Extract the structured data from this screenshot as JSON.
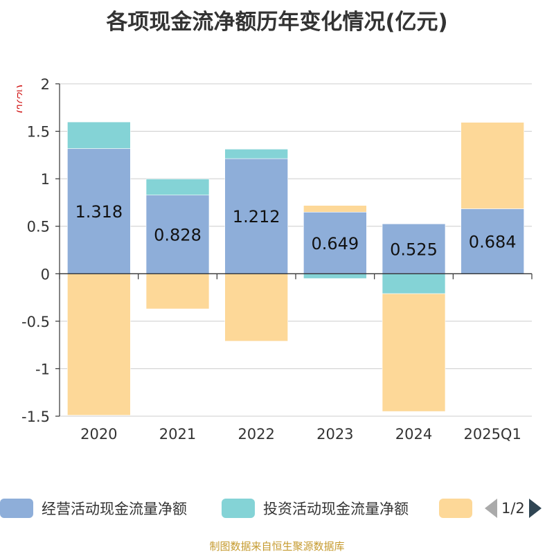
{
  "title": "各项现金流净额历年变化情况(亿元)",
  "unit_label": "(亿元)",
  "source": "制图数据来自恒生聚源数据库",
  "colors": {
    "operating": "#8eaed9",
    "investing": "#84d3d6",
    "financing": "#fdd898",
    "axis": "#333333",
    "grid": "#cccccc",
    "unit_text": "#cc0000"
  },
  "pager": {
    "label": "1/2",
    "prev_icon": "triangle-left-icon",
    "next_icon": "triangle-right-icon"
  },
  "chart_data": {
    "type": "bar",
    "stacked": true,
    "categories": [
      "2020",
      "2021",
      "2022",
      "2023",
      "2024",
      "2025Q1"
    ],
    "series": [
      {
        "name": "经营活动现金流量净额",
        "values": [
          1.318,
          0.828,
          1.212,
          0.649,
          0.525,
          0.684
        ]
      },
      {
        "name": "投资活动现金流量净额",
        "values": [
          0.28,
          0.17,
          0.1,
          -0.05,
          -0.21,
          0.0
        ]
      },
      {
        "name": "",
        "values": [
          -1.49,
          -0.37,
          -0.71,
          0.07,
          -1.24,
          0.91
        ]
      }
    ],
    "data_labels": [
      "1.318",
      "0.828",
      "1.212",
      "0.649",
      "0.525",
      "0.684"
    ],
    "y_ticks": [
      "2",
      "1.5",
      "1",
      "0.5",
      "0",
      "-0.5",
      "-1",
      "-1.5"
    ],
    "ylim": [
      -1.5,
      2
    ],
    "grid": true,
    "legend_position": "bottom"
  }
}
